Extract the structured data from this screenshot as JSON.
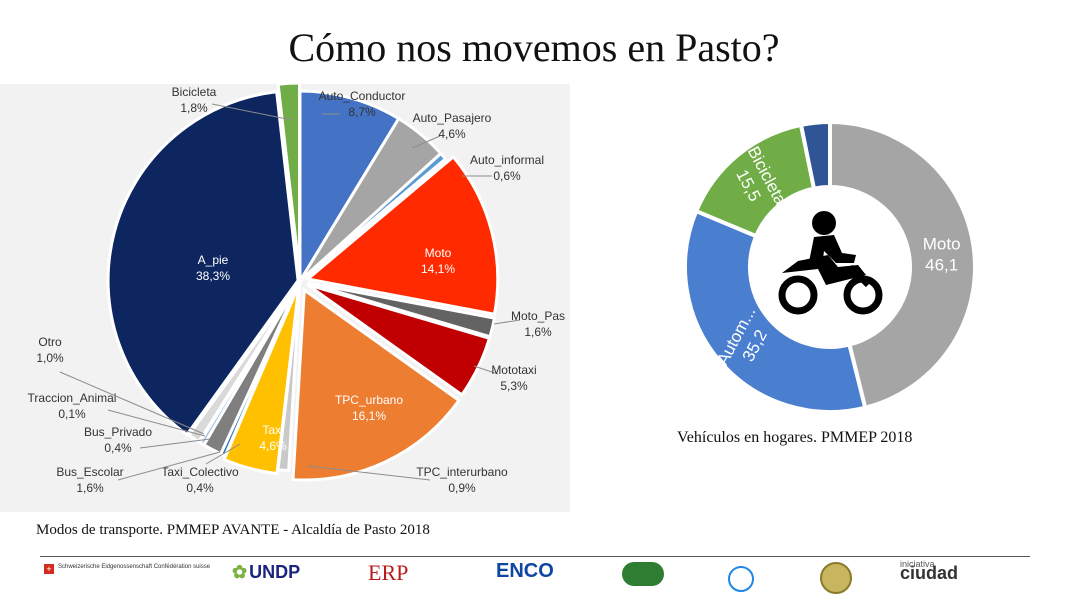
{
  "page": {
    "title": "Cómo nos movemos en Pasto?"
  },
  "chart_data": [
    {
      "type": "pie",
      "caption": "Modos de transporte. PMMEP AVANTE - Alcaldía de Pasto 2018",
      "slices": [
        {
          "label": "Auto_Conductor",
          "value": 8.7,
          "display": "8,7%",
          "color": "#4472c4"
        },
        {
          "label": "Auto_Pasajero",
          "value": 4.6,
          "display": "4,6%",
          "color": "#a5a5a5"
        },
        {
          "label": "Auto_informal",
          "value": 0.6,
          "display": "0,6%",
          "color": "#5b9bd5"
        },
        {
          "label": "Moto",
          "value": 14.1,
          "display": "14,1%",
          "color": "#ff2a00"
        },
        {
          "label": "Moto_Pas",
          "value": 1.6,
          "display": "1,6%",
          "color": "#636363"
        },
        {
          "label": "Mototaxi",
          "value": 5.3,
          "display": "5,3%",
          "color": "#c00000"
        },
        {
          "label": "TPC_urbano",
          "value": 16.1,
          "display": "16,1%",
          "color": "#ed7d31"
        },
        {
          "label": "TPC_interurbano",
          "value": 0.9,
          "display": "0,9%",
          "color": "#c9c9c9"
        },
        {
          "label": "Taxi",
          "value": 4.6,
          "display": "4,6%",
          "color": "#ffc000"
        },
        {
          "label": "Taxi_Colectivo",
          "value": 0.4,
          "display": "0,4%",
          "color": "#2e75b6"
        },
        {
          "label": "Bus_Escolar",
          "value": 1.6,
          "display": "1,6%",
          "color": "#7f7f7f"
        },
        {
          "label": "Bus_Privado",
          "value": 0.4,
          "display": "0,4%",
          "color": "#9dc3e6"
        },
        {
          "label": "Traccion_Animal",
          "value": 0.1,
          "display": "0,1%",
          "color": "#c55a11"
        },
        {
          "label": "Otro",
          "value": 1.0,
          "display": "1,0%",
          "color": "#d9d9d9"
        },
        {
          "label": "A_pie",
          "value": 38.3,
          "display": "38,3%",
          "color": "#0d2660"
        },
        {
          "label": "Bicicleta",
          "value": 1.8,
          "display": "1,8%",
          "color": "#70ad47"
        }
      ]
    },
    {
      "type": "pie",
      "subtype": "donut",
      "caption": "Vehículos en hogares. PMMEP 2018",
      "slices": [
        {
          "label": "Moto",
          "value": 46.1,
          "display": "46,1",
          "color": "#a5a5a5"
        },
        {
          "label": "Autom...",
          "value": 35.2,
          "display": "35,2",
          "color": "#4a7fd0"
        },
        {
          "label": "Bicicleta",
          "value": 15.5,
          "display": "15,5",
          "color": "#70ad47"
        },
        {
          "label": "",
          "value": 3.2,
          "display": "",
          "color": "#2f5597"
        }
      ]
    }
  ],
  "footer": {
    "swiss_text": "Schweizerische Eidgenossenschaft Confédération suisse",
    "undp": "UNDP",
    "erp": "ERP",
    "enco": "ENCO",
    "ciudad_small": "iniciativa",
    "ciudad_big": "ciudad"
  }
}
